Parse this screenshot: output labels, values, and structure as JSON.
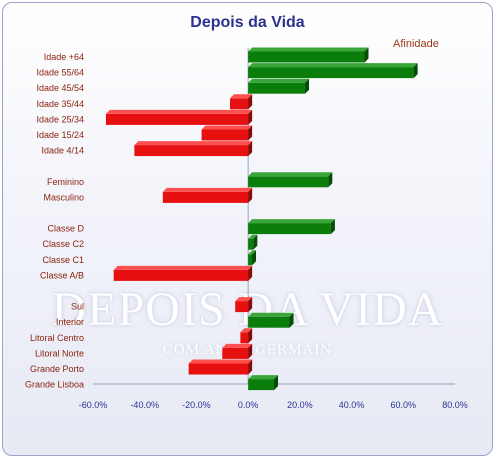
{
  "chart_data": {
    "type": "bar",
    "orientation": "horizontal",
    "title": "Depois da Vida",
    "legend": [
      "Afinidade"
    ],
    "legend_position": "top-right",
    "xlim": [
      -60,
      80
    ],
    "x_ticks": [
      "-60.0%",
      "-40.0%",
      "-20.0%",
      "0.0%",
      "20.0%",
      "40.0%",
      "60.0%",
      "80.0%"
    ],
    "positive_color": "#0a7d0a",
    "negative_color": "#e61010",
    "categories": [
      "Idade +64",
      "Idade 55/64",
      "Idade 45/54",
      "Idade 35/44",
      "Idade 25/34",
      "Idade 15/24",
      "Idade 4/14",
      "",
      "Feminino",
      "Masculino",
      "",
      "Classe D",
      "Classe C2",
      "Classe C1",
      "Classe A/B",
      "",
      "Sul",
      "Interior",
      "Litoral Centro",
      "Litoral Norte",
      "Grande Porto",
      "Grande Lisboa"
    ],
    "values": [
      45.0,
      64.0,
      22.0,
      -7.0,
      -55.0,
      -18.0,
      -44.0,
      null,
      31.0,
      -33.0,
      null,
      32.0,
      2.0,
      1.5,
      -52.0,
      null,
      -5.0,
      16.0,
      -3.0,
      -10.0,
      -23.0,
      10.0
    ]
  },
  "watermark": {
    "main": "DEPOIS DA VIDA",
    "sub": "COM ANNA GERMAIN"
  }
}
